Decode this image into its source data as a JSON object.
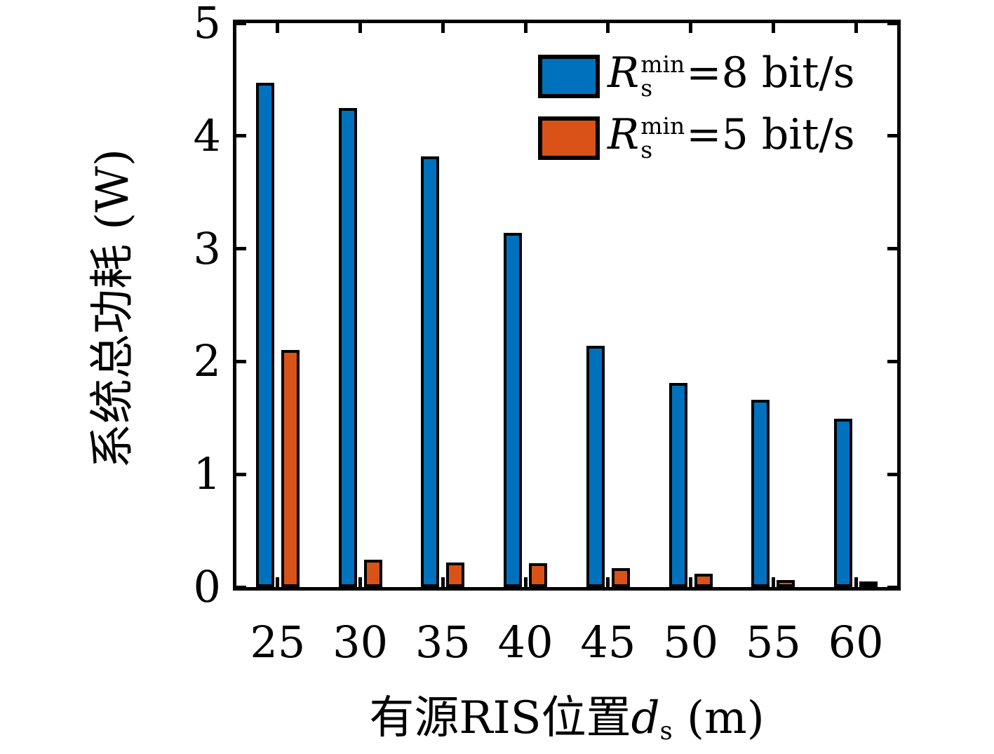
{
  "chart_data": {
    "type": "bar",
    "title": "",
    "categories": [
      "25",
      "30",
      "35",
      "40",
      "45",
      "50",
      "55",
      "60"
    ],
    "series": [
      {
        "key": "rs-min-8",
        "name": "Rs_min=8 bit/s",
        "color": "#0072BD",
        "values": [
          4.47,
          4.25,
          3.82,
          3.14,
          2.14,
          1.81,
          1.66,
          1.49
        ]
      },
      {
        "key": "rs-min-5",
        "name": "Rs_min=5 bit/s",
        "color": "#D95319",
        "values": [
          2.1,
          0.24,
          0.22,
          0.21,
          0.17,
          0.12,
          0.06,
          0.03
        ]
      }
    ],
    "xlabel": "有源RIS位置ds (m)",
    "ylabel": "系统总功耗 (W)",
    "ylim": [
      0,
      5
    ],
    "yticks": [
      0,
      1,
      2,
      3,
      4,
      5
    ],
    "grid": false,
    "legend_position": "top-right-inside"
  },
  "legend": [
    {
      "symbol": "R",
      "sup": "min",
      "sub": "s",
      "eq": "=8 bit/s",
      "color": "#0072BD"
    },
    {
      "symbol": "R",
      "sup": "min",
      "sub": "s",
      "eq": "=5 bit/s",
      "color": "#D95319"
    }
  ],
  "xlabel_parts": {
    "prefix": "有源RIS位置",
    "var": "d",
    "sub": "s",
    "suffix": " (m)"
  },
  "colors": {
    "bar_blue": "#0072BD",
    "bar_orange": "#D95319",
    "axis": "#000000",
    "background": "#FFFFFF"
  }
}
